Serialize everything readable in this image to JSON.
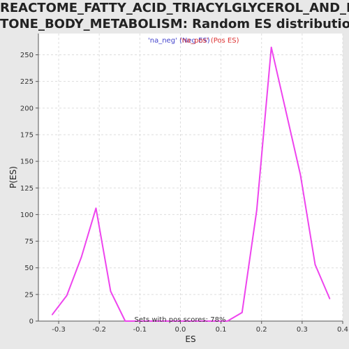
{
  "chart_data": {
    "type": "line",
    "title_lines": [
      "REACTOME_FATTY_ACID_TRIACYLGLYCEROL_AND_KE",
      "TONE_BODY_METABOLISM: Random ES distribution"
    ],
    "xlabel": "ES",
    "ylabel": "P(ES)",
    "xlim": [
      -0.35,
      0.4
    ],
    "ylim": [
      0,
      270
    ],
    "xticks": [
      -0.3,
      -0.2,
      -0.1,
      0.0,
      0.1,
      0.2,
      0.3,
      0.4
    ],
    "xtick_labels": [
      "-0.3",
      "-0.2",
      "-0.1",
      "0.0",
      "0.1",
      "0.2",
      "0.3",
      "0.4"
    ],
    "yticks": [
      0,
      25,
      50,
      75,
      100,
      125,
      150,
      175,
      200,
      225,
      250
    ],
    "ytick_labels": [
      "0",
      "25",
      "50",
      "75",
      "100",
      "125",
      "150",
      "175",
      "200",
      "225",
      "250"
    ],
    "grid": true,
    "legend": [
      {
        "label": "'na_neg' (Neg ES)",
        "color": "#4444cc"
      },
      {
        "label": "'na_pos' (Pos ES)",
        "color": "#dd3333"
      }
    ],
    "annotation": "Sets with pos scores: 78%",
    "series": [
      {
        "color": "#ee44ee",
        "x": [
          -0.316,
          -0.28,
          -0.244,
          -0.208,
          -0.172,
          -0.136,
          -0.1,
          -0.064,
          -0.028,
          0.008,
          0.044,
          0.08,
          0.116,
          0.152,
          0.188,
          0.224,
          0.26,
          0.296,
          0.332,
          0.368
        ],
        "y": [
          6,
          24,
          60,
          106,
          28,
          0,
          0,
          0,
          0,
          0,
          0,
          0,
          0,
          8,
          104,
          257,
          197,
          137,
          53,
          21
        ]
      }
    ]
  },
  "colors": {
    "plot_bg": "#ffffff",
    "page_bg": "#e8e8e8",
    "grid": "#dddddd"
  }
}
